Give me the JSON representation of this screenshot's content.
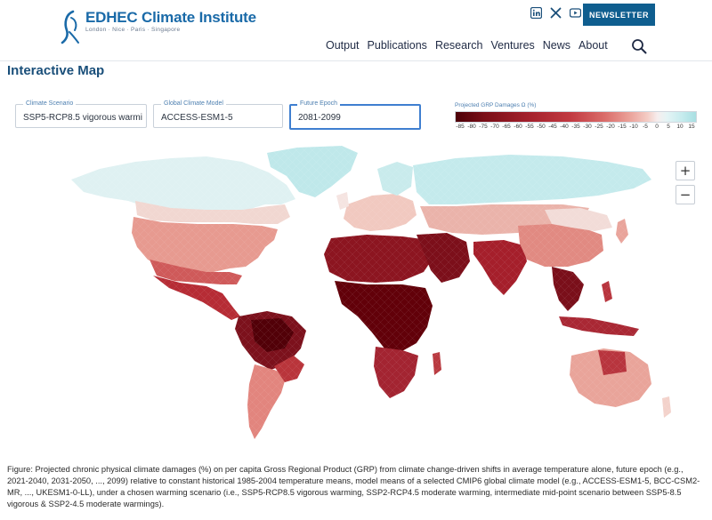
{
  "header": {
    "logo_title": "EDHEC Climate Institute",
    "logo_subtitle": "London · Nice · Paris · Singapore",
    "newsletter_label": "NEWSLETTER",
    "nav": [
      {
        "label": "Output"
      },
      {
        "label": "Publications"
      },
      {
        "label": "Research"
      },
      {
        "label": "Ventures"
      },
      {
        "label": "News"
      },
      {
        "label": "About"
      }
    ],
    "social_icons": [
      "linkedin-icon",
      "x-icon",
      "youtube-icon"
    ]
  },
  "page_title": "Interactive Map",
  "controls": {
    "scenario": {
      "label": "Climate Scenario",
      "value": "SSP5-RCP8.5 vigorous warmi"
    },
    "model": {
      "label": "Global Climate Model",
      "value": "ACCESS-ESM1-5"
    },
    "epoch": {
      "label": "Future Epoch",
      "value": "2081-2099"
    }
  },
  "legend": {
    "title": "Projected GRP Damages Ω (%)",
    "ticks": [
      "-85",
      "-80",
      "-75",
      "-70",
      "-65",
      "-60",
      "-55",
      "-50",
      "-45",
      "-40",
      "-35",
      "-30",
      "-25",
      "-20",
      "-15",
      "-10",
      "-5",
      "0",
      "5",
      "10",
      "15"
    ],
    "colors": {
      "deep_red": "#67000d",
      "red": "#b2182b",
      "light_red": "#e8908a",
      "pale": "#f4d3cd",
      "neutral": "#f0f0f0",
      "light_blue": "#c6ecee",
      "blue": "#a5dde0"
    }
  },
  "map_controls": {
    "zoom_in": "+",
    "zoom_out": "−"
  },
  "caption": "Figure: Projected chronic physical climate damages (%) on per capita Gross Regional Product (GRP) from climate change-driven shifts in average temperature alone, future epoch (e.g., 2021-2040, 2031-2050, ..., 2099) relative to constant historical 1985-2004 temperature means, model means of a selected CMIP6 global climate model (e.g., ACCESS-ESM1-5, BCC-CSM2-MR, ..., UKESM1-0-LL), under a chosen warming scenario (i.e., SSP5-RCP8.5 vigorous warming, SSP2-RCP4.5 moderate warming, intermediate mid-point scenario between SSP5-8.5 vigorous & SSP2-4.5 moderate warmings)."
}
